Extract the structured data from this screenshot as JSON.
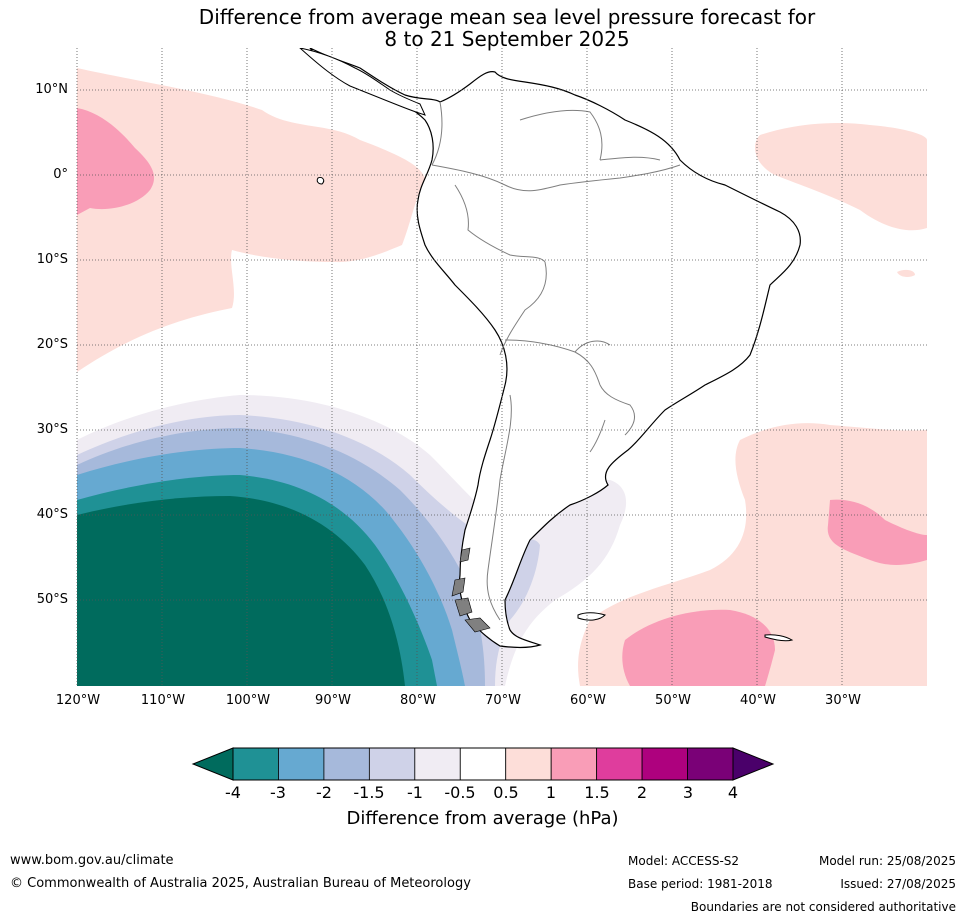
{
  "title": {
    "line1": "Difference from average mean sea level pressure forecast for",
    "line2": "8 to 21 September 2025"
  },
  "map": {
    "region": "South America",
    "lat_labels": [
      "10°N",
      "0°",
      "10°S",
      "20°S",
      "30°S",
      "40°S",
      "50°S"
    ],
    "lon_labels": [
      "120°W",
      "110°W",
      "100°W",
      "90°W",
      "80°W",
      "70°W",
      "60°W",
      "50°W",
      "40°W",
      "30°W"
    ],
    "gridlines": true
  },
  "colorbar": {
    "labels": [
      "-4",
      "-3",
      "-2",
      "-1.5",
      "-1",
      "-0.5",
      "0.5",
      "1",
      "1.5",
      "2",
      "3",
      "4"
    ],
    "colors": [
      "#1f9195",
      "#66a9d1",
      "#a6b9db",
      "#cfd2e8",
      "#f0ecf3",
      "#ffffff",
      "#fdded9",
      "#f99db7",
      "#df3d9d",
      "#ae017e",
      "#7a0177"
    ],
    "under_color": "#006b5d",
    "over_color": "#4a006a",
    "label": "Difference from average (hPa)"
  },
  "footer": {
    "website": "www.bom.gov.au/climate",
    "copyright": "© Commonwealth of Australia 2025, Australian Bureau of Meteorology",
    "model": "Model: ACCESS-S2",
    "base_period": "Base period: 1981-2018",
    "model_run": "Model run: 25/08/2025",
    "issued": "Issued: 27/08/2025",
    "disclaimer": "Boundaries are not considered authoritative"
  }
}
